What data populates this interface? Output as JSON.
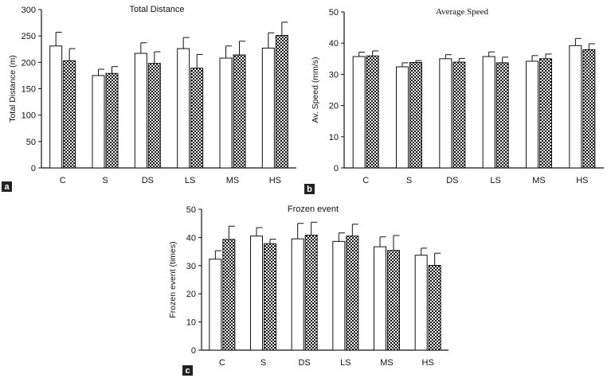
{
  "chart_data": [
    {
      "type": "bar",
      "panel_label": "a",
      "title": "Total Distance",
      "xlabel": "",
      "ylabel": "Total Distance (m)",
      "ylim": [
        0,
        300
      ],
      "yticks": [
        0,
        50,
        100,
        150,
        200,
        250,
        300
      ],
      "categories": [
        "C",
        "S",
        "DS",
        "LS",
        "MS",
        "HS"
      ],
      "series": [
        {
          "name": "white",
          "fill": "plain",
          "values": [
            231,
            175,
            217,
            226,
            208,
            227
          ],
          "errors": [
            26,
            12,
            20,
            21,
            23,
            29
          ]
        },
        {
          "name": "checkered",
          "fill": "checker",
          "values": [
            203,
            179,
            198,
            189,
            214,
            251
          ],
          "errors": [
            23,
            13,
            22,
            26,
            26,
            25
          ]
        }
      ]
    },
    {
      "type": "bar",
      "panel_label": "b",
      "title": "Average Speed",
      "xlabel": "",
      "ylabel": "Av. Speed (mm/s)",
      "ylim": [
        0,
        50
      ],
      "yticks": [
        0,
        10,
        20,
        30,
        40,
        50
      ],
      "categories": [
        "C",
        "S",
        "DS",
        "LS",
        "MS",
        "HS"
      ],
      "series": [
        {
          "name": "white",
          "fill": "plain",
          "values": [
            35.7,
            32.4,
            35.0,
            35.7,
            34.2,
            39.2
          ],
          "errors": [
            1.4,
            1.3,
            1.3,
            1.5,
            1.8,
            2.3
          ]
        },
        {
          "name": "checkered",
          "fill": "checker",
          "values": [
            35.9,
            33.8,
            33.9,
            33.7,
            35.0,
            37.9
          ],
          "errors": [
            1.6,
            0.6,
            1.2,
            1.8,
            1.5,
            1.9
          ]
        }
      ]
    },
    {
      "type": "bar",
      "panel_label": "c",
      "title": "Frozen event",
      "xlabel": "",
      "ylabel": "Frozen event (times)",
      "ylim": [
        0,
        50
      ],
      "yticks": [
        0,
        10,
        20,
        30,
        40,
        50
      ],
      "categories": [
        "C",
        "S",
        "DS",
        "LS",
        "MS",
        "HS"
      ],
      "series": [
        {
          "name": "white",
          "fill": "plain",
          "values": [
            32.3,
            40.5,
            39.5,
            38.6,
            36.7,
            33.7
          ],
          "errors": [
            3.0,
            3.0,
            5.5,
            3.0,
            3.5,
            2.5
          ]
        },
        {
          "name": "checkered",
          "fill": "checker",
          "values": [
            39.3,
            37.8,
            40.8,
            40.5,
            35.4,
            30.1
          ],
          "errors": [
            4.7,
            1.6,
            4.6,
            4.2,
            5.3,
            4.3
          ]
        }
      ]
    }
  ]
}
